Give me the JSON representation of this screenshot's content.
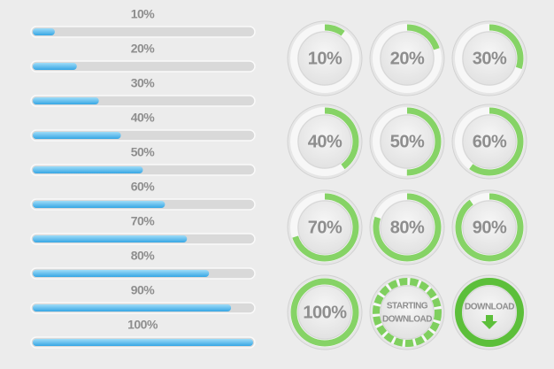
{
  "bars": {
    "range": [
      0,
      100
    ],
    "items": [
      {
        "value": 10,
        "label": "10%"
      },
      {
        "value": 20,
        "label": "20%"
      },
      {
        "value": 30,
        "label": "30%"
      },
      {
        "value": 40,
        "label": "40%"
      },
      {
        "value": 50,
        "label": "50%"
      },
      {
        "value": 60,
        "label": "60%"
      },
      {
        "value": 70,
        "label": "70%"
      },
      {
        "value": 80,
        "label": "80%"
      },
      {
        "value": 90,
        "label": "90%"
      },
      {
        "value": 100,
        "label": "100%"
      }
    ]
  },
  "rings": {
    "range": [
      0,
      100
    ],
    "items": [
      {
        "value": 10,
        "label": "10%"
      },
      {
        "value": 20,
        "label": "20%"
      },
      {
        "value": 30,
        "label": "30%"
      },
      {
        "value": 40,
        "label": "40%"
      },
      {
        "value": 50,
        "label": "50%"
      },
      {
        "value": 60,
        "label": "60%"
      },
      {
        "value": 70,
        "label": "70%"
      },
      {
        "value": 80,
        "label": "80%"
      },
      {
        "value": 90,
        "label": "90%"
      },
      {
        "value": 100,
        "label": "100%"
      }
    ]
  },
  "buttons": [
    {
      "lines": [
        "STARTING",
        "DOWNLOAD"
      ]
    },
    {
      "lines": [
        "DOWNLOAD"
      ]
    }
  ]
}
